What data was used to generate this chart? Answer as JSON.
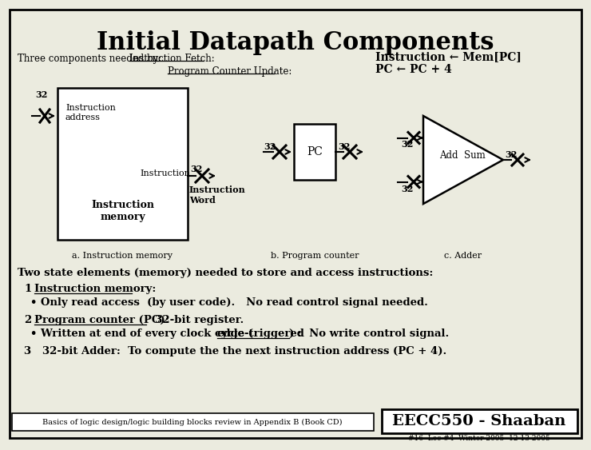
{
  "title": "Initial Datapath Components",
  "bg_color": "#ebebdf",
  "title_fontsize": 22,
  "line1_left": "Three components needed by:  ",
  "line1_fetch": "Instruction Fetch:",
  "line1_right": "Instruction ← Mem[PC]",
  "line2_label": "Program Counter Update:",
  "line2_right": "PC ← PC + 4",
  "label_a": "a. Instruction memory",
  "label_b": "b. Program counter",
  "label_c": "c. Adder",
  "text_two_state": "Two state elements (memory) needed to store and access instructions:",
  "text_1": "1",
  "text_1b": "Instruction memory:",
  "text_bullet1": "• Only read access  (by user code).   No read control signal needed.",
  "text_2": "2",
  "text_2b": "Program counter (PC):",
  "text_2c": "  32-bit register.",
  "text_bullet2": "• Written at end of every clock cycle (",
  "text_bullet2_ul": "edge-triggered",
  "text_bullet2_end": ") :  No write control signal.",
  "text_3": "3   32-bit Adder:  To compute the the next instruction address (PC + 4).",
  "footer_left": "Basics of logic design/logic building blocks review in Appendix B (Book CD)",
  "footer_right": "EECC550 - Shaaban",
  "footer_bottom": "#16  Lec #4  Winter 2005  12-13-2005"
}
